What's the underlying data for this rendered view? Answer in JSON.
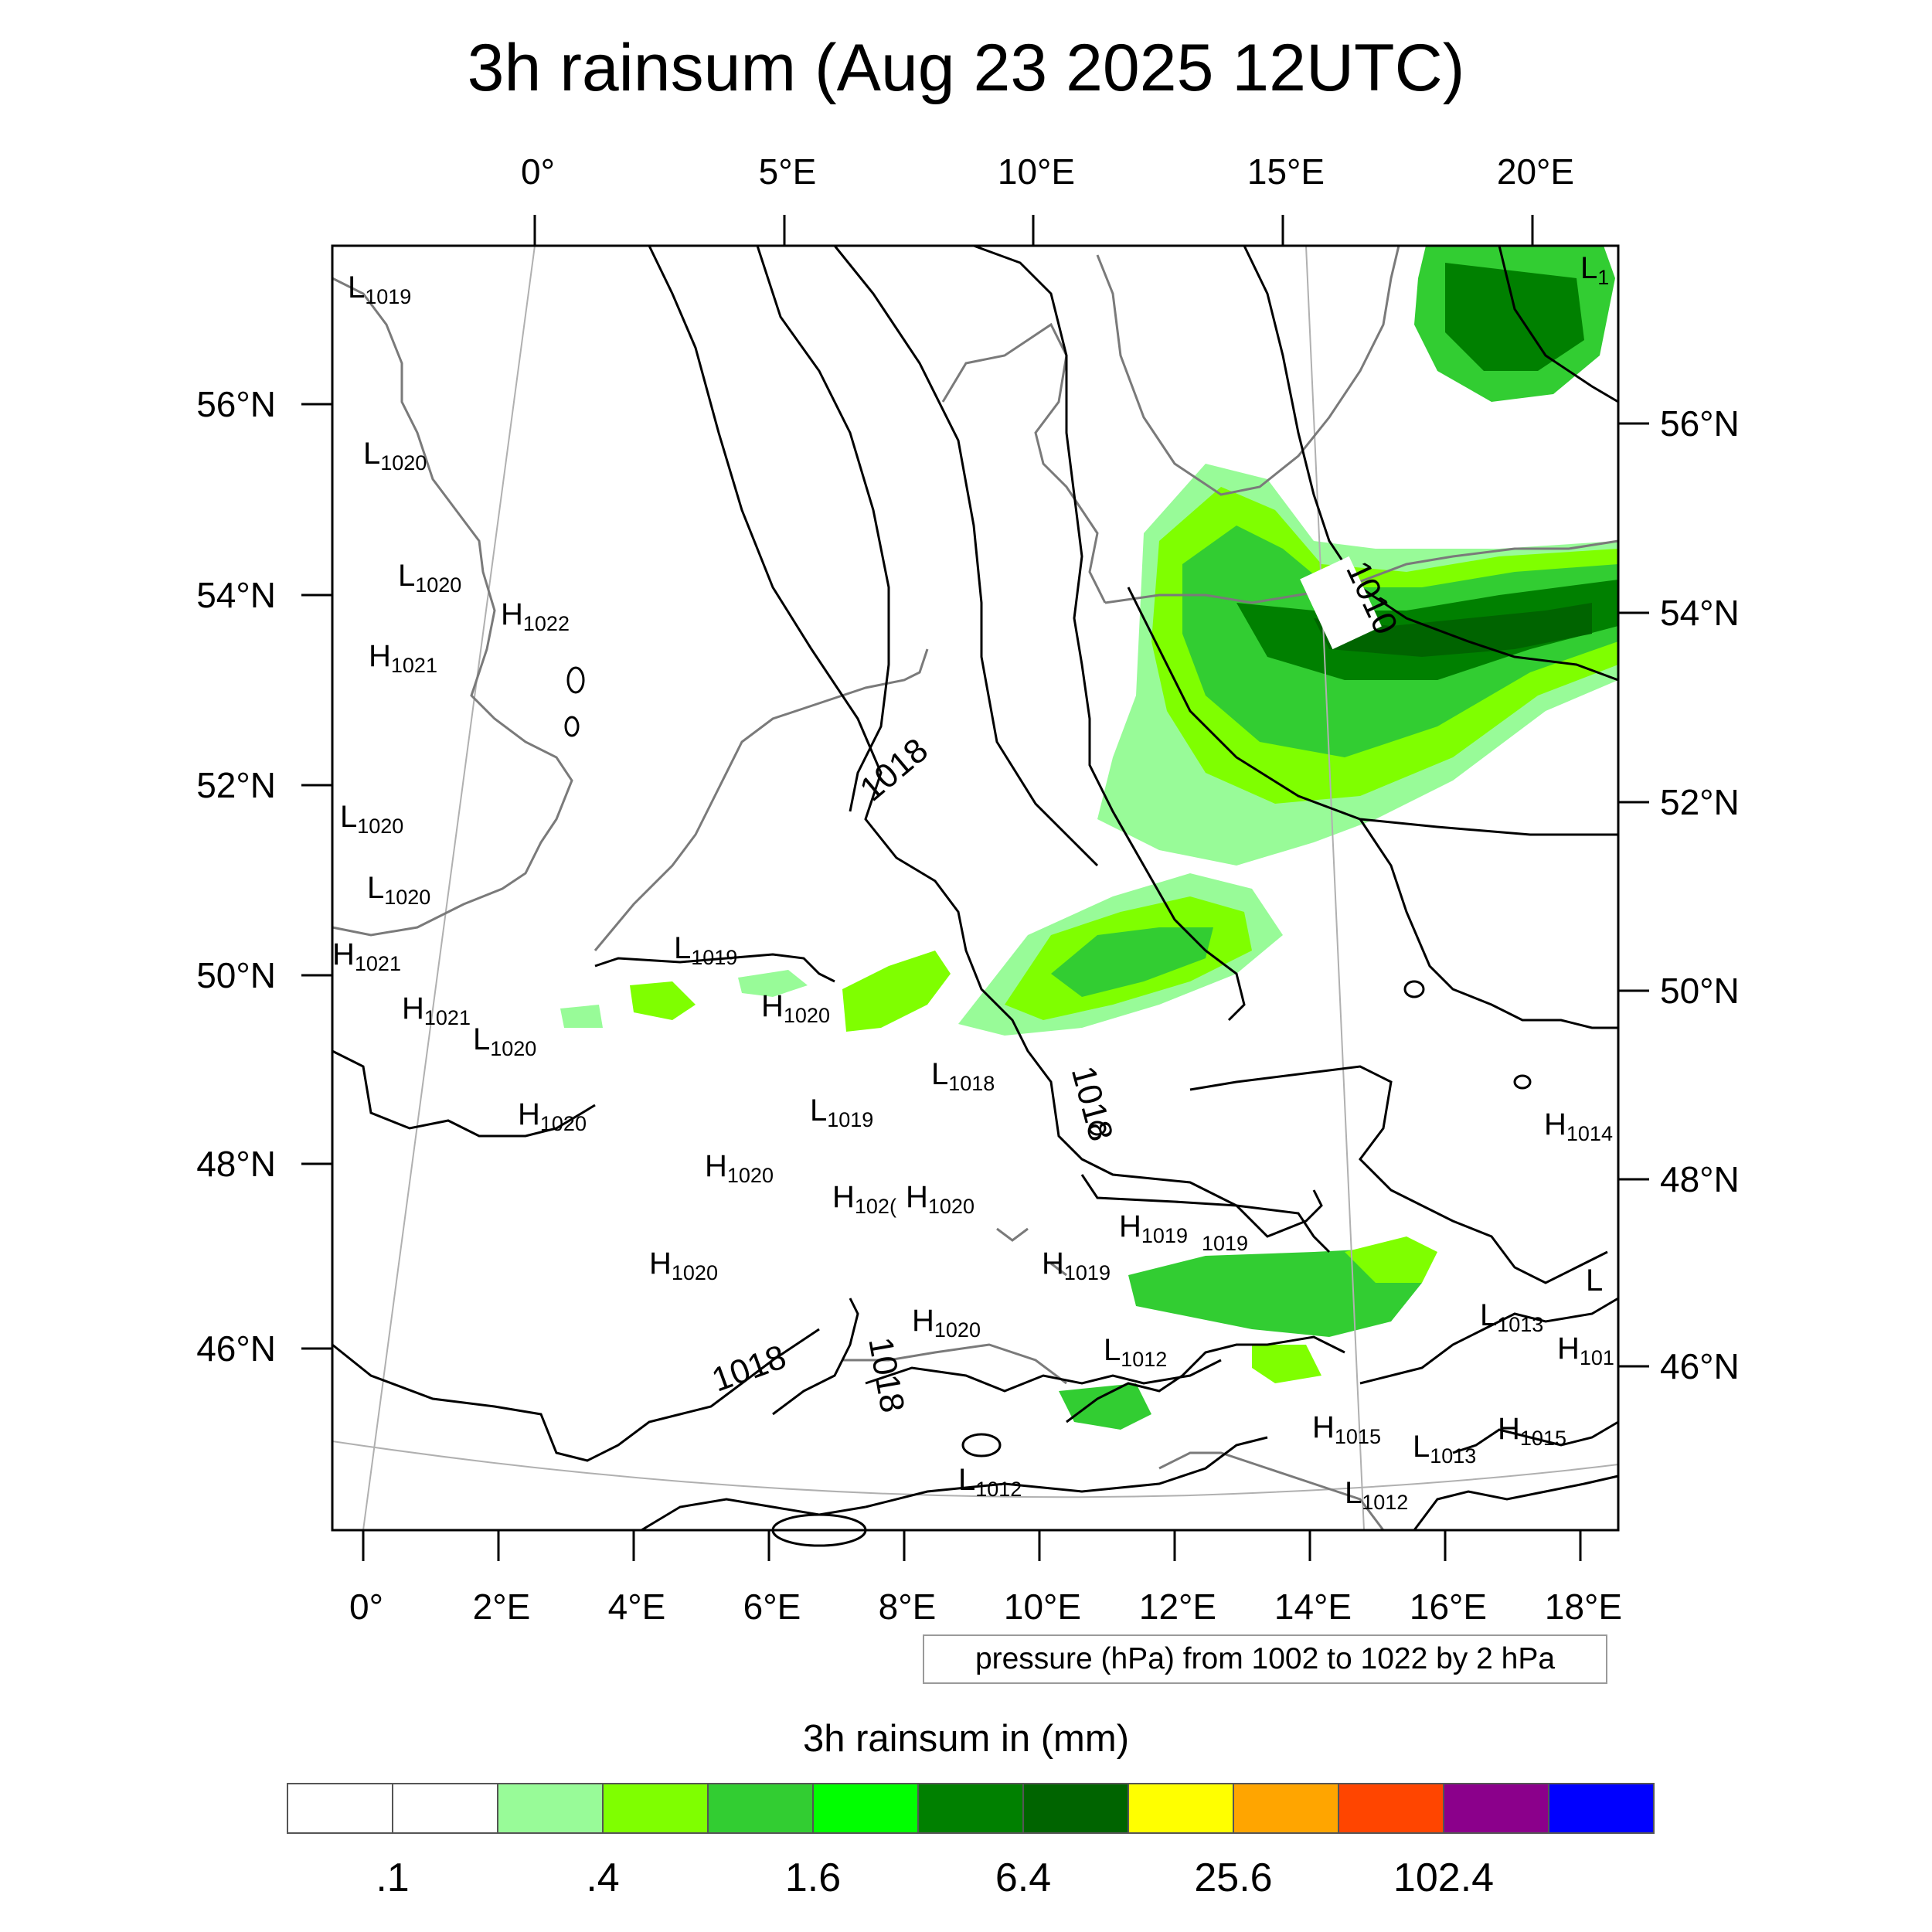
{
  "title": "3h rainsum (Aug 23 2025 12UTC)",
  "top_lon_labels": [
    "0°",
    "5°E",
    "10°E",
    "15°E",
    "20°E"
  ],
  "bottom_lon_labels": [
    "0°",
    "2°E",
    "4°E",
    "6°E",
    "8°E",
    "10°E",
    "12°E",
    "14°E",
    "16°E",
    "18°E"
  ],
  "left_lat_labels": [
    "56°N",
    "54°N",
    "52°N",
    "50°N",
    "48°N",
    "46°N"
  ],
  "right_lat_labels": [
    "56°N",
    "54°N",
    "52°N",
    "50°N",
    "48°N",
    "46°N"
  ],
  "isobar_labels": [
    "1018",
    "1018",
    "1018",
    "1018",
    "1010"
  ],
  "pressure_centers": [
    {
      "type": "L",
      "value": "1019"
    },
    {
      "type": "L",
      "value": "1020"
    },
    {
      "type": "L",
      "value": "1020"
    },
    {
      "type": "H",
      "value": "1022"
    },
    {
      "type": "H",
      "value": "1021"
    },
    {
      "type": "L",
      "value": "1020"
    },
    {
      "type": "L",
      "value": "1020"
    },
    {
      "type": "H",
      "value": "1021"
    },
    {
      "type": "H",
      "value": "1021"
    },
    {
      "type": "L",
      "value": "1020"
    },
    {
      "type": "L",
      "value": "1019"
    },
    {
      "type": "H",
      "value": "1020"
    },
    {
      "type": "H",
      "value": "1020"
    },
    {
      "type": "L",
      "value": "1018"
    },
    {
      "type": "L",
      "value": "1019"
    },
    {
      "type": "H",
      "value": "1020"
    },
    {
      "type": "H",
      "value": "102("
    },
    {
      "type": "H",
      "value": "1020"
    },
    {
      "type": "H",
      "value": "1020"
    },
    {
      "type": "H",
      "value": "1019"
    },
    {
      "type": "",
      "value": "1019"
    },
    {
      "type": "H",
      "value": "1019"
    },
    {
      "type": "H",
      "value": "1020"
    },
    {
      "type": "L",
      "value": "1012"
    },
    {
      "type": "L",
      "value": "1013"
    },
    {
      "type": "H",
      "value": "101"
    },
    {
      "type": "H",
      "value": "1015"
    },
    {
      "type": "L",
      "value": "1013"
    },
    {
      "type": "H",
      "value": "1015"
    },
    {
      "type": "L",
      "value": "1012"
    },
    {
      "type": "L",
      "value": "1012"
    },
    {
      "type": "H",
      "value": "1014"
    },
    {
      "type": "L",
      "value": "1"
    },
    {
      "type": "L",
      "value": ""
    }
  ],
  "pressure_note": "pressure (hPa) from 1002 to 1022 by 2 hPa",
  "legend": {
    "title": "3h rainsum in (mm)",
    "colors": [
      "#ffffff",
      "#ffffff",
      "#98fb98",
      "#7fff00",
      "#32cd32",
      "#00ff00",
      "#008000",
      "#006400",
      "#ffff00",
      "#ffa500",
      "#ff4500",
      "#8b008b",
      "#0000ff"
    ],
    "labels": [
      ".1",
      ".4",
      "1.6",
      "6.4",
      "25.6",
      "102.4"
    ]
  }
}
